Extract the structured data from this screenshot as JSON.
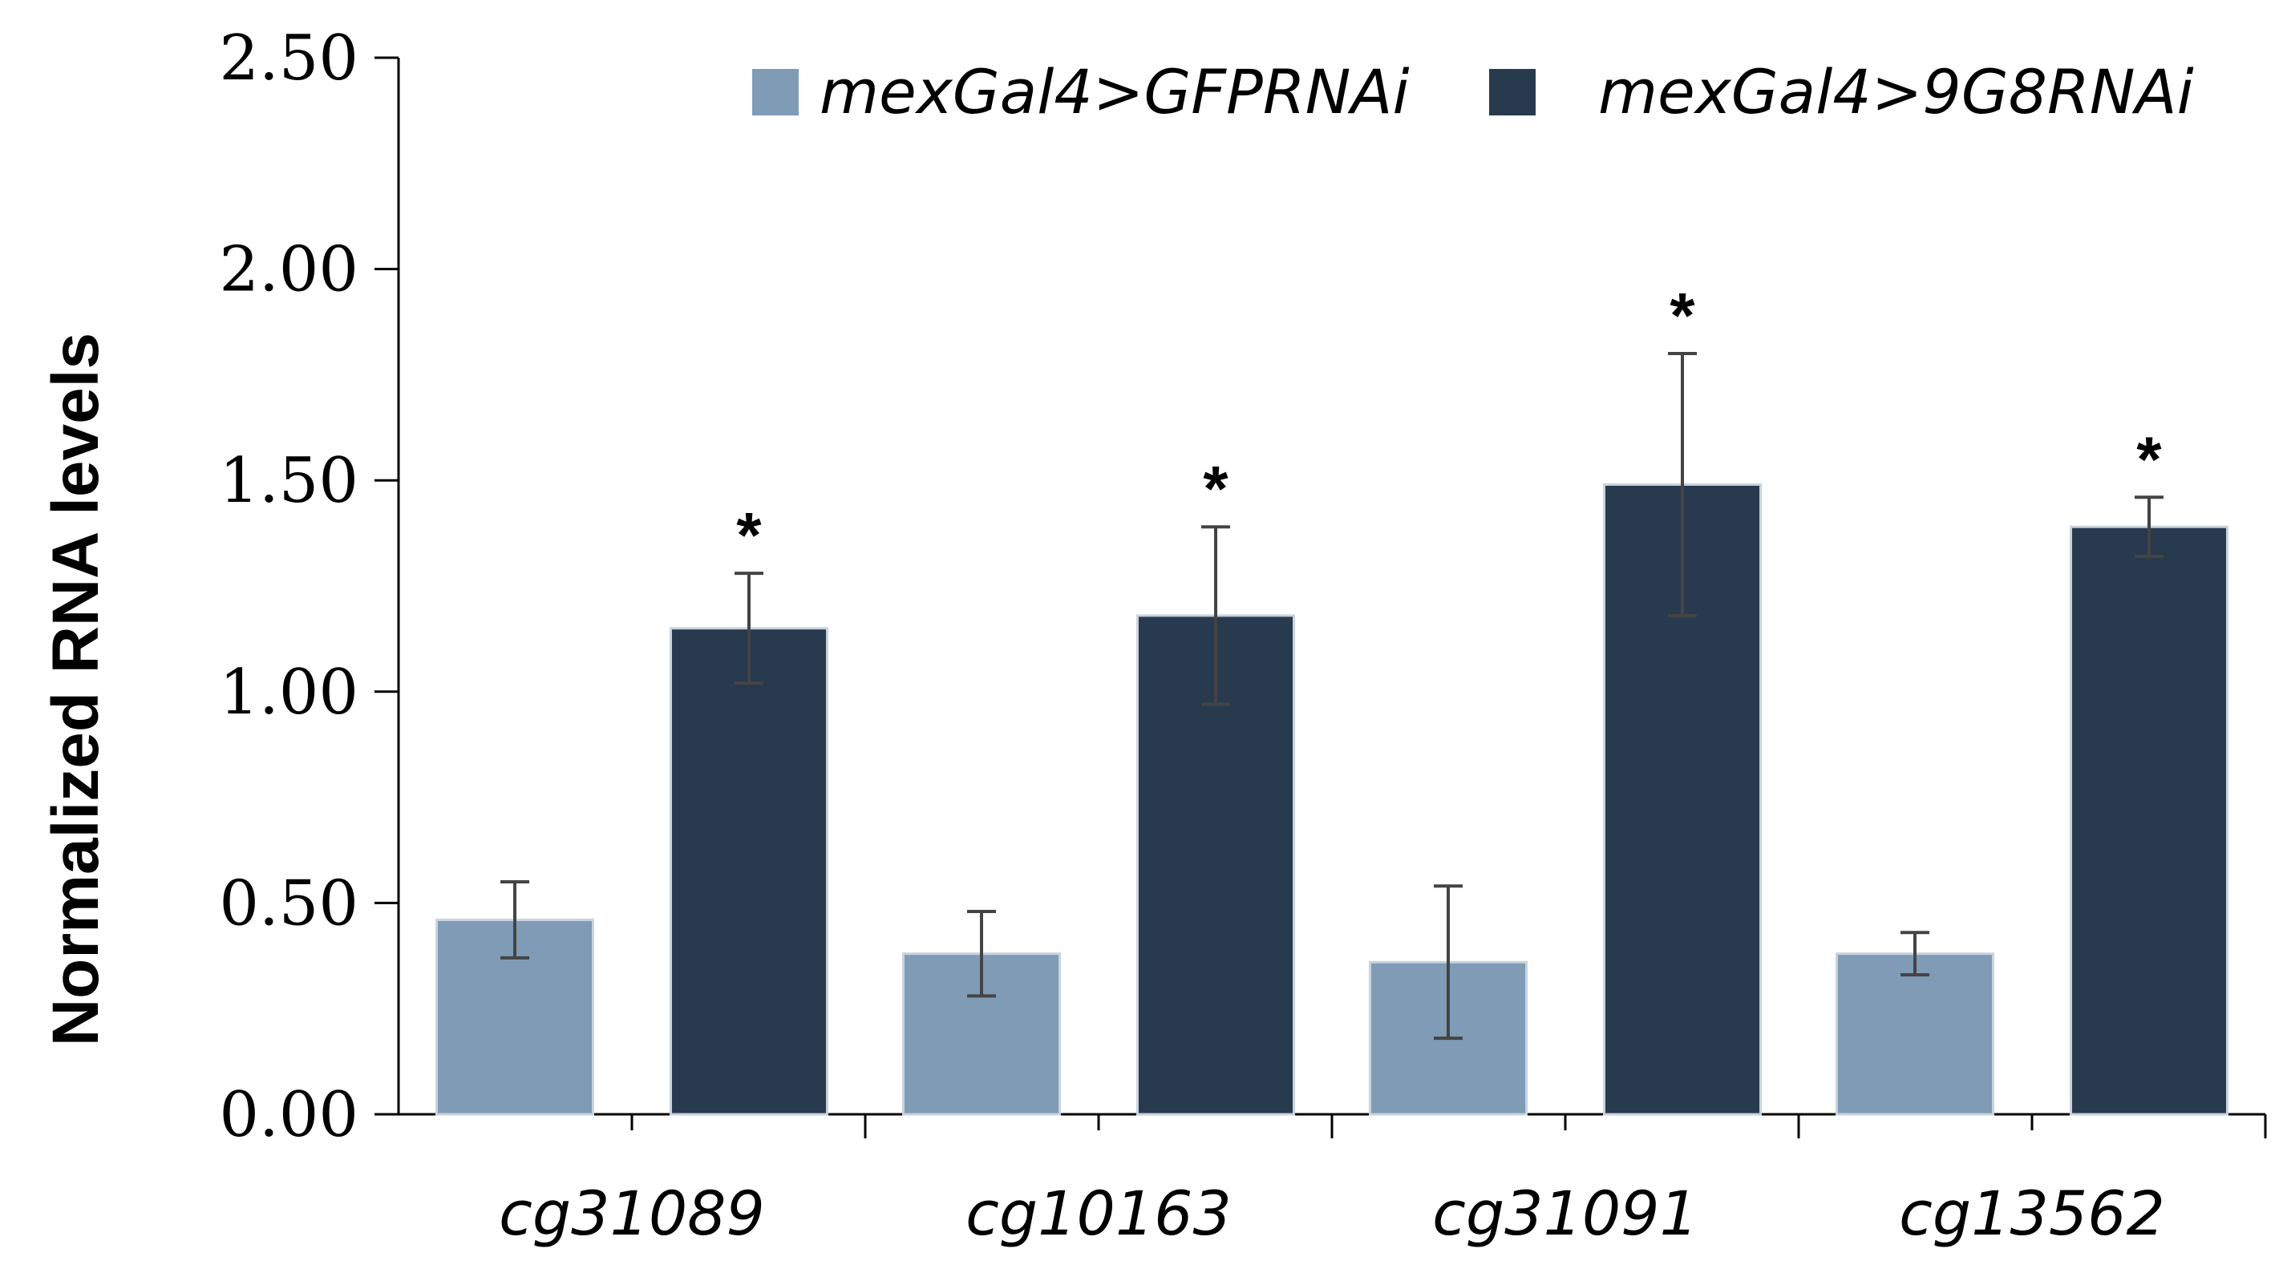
{
  "chart_data": {
    "type": "bar",
    "title": "",
    "xlabel": "",
    "ylabel": "Normalized RNA levels",
    "ylim": [
      0,
      2.5
    ],
    "yticks": [
      "0.00",
      "0.50",
      "1.00",
      "1.50",
      "2.00",
      "2.50"
    ],
    "grid": false,
    "legend_position": "top-right",
    "categories": [
      "cg31089",
      "cg10163",
      "cg31091",
      "cg13562"
    ],
    "series": [
      {
        "name": "mexGal4>GFPRNAi",
        "color": "#7f9bb6",
        "values": [
          0.46,
          0.38,
          0.36,
          0.38
        ],
        "error": [
          0.09,
          0.1,
          0.18,
          0.05
        ],
        "annotations": [
          "",
          "",
          "",
          ""
        ]
      },
      {
        "name": "mexGal4>9G8RNAi",
        "color": "#283a4d",
        "values": [
          1.15,
          1.18,
          1.49,
          1.39
        ],
        "error": [
          0.13,
          0.21,
          0.31,
          0.07
        ],
        "annotations": [
          "*",
          "*",
          "*",
          "*"
        ]
      }
    ]
  }
}
